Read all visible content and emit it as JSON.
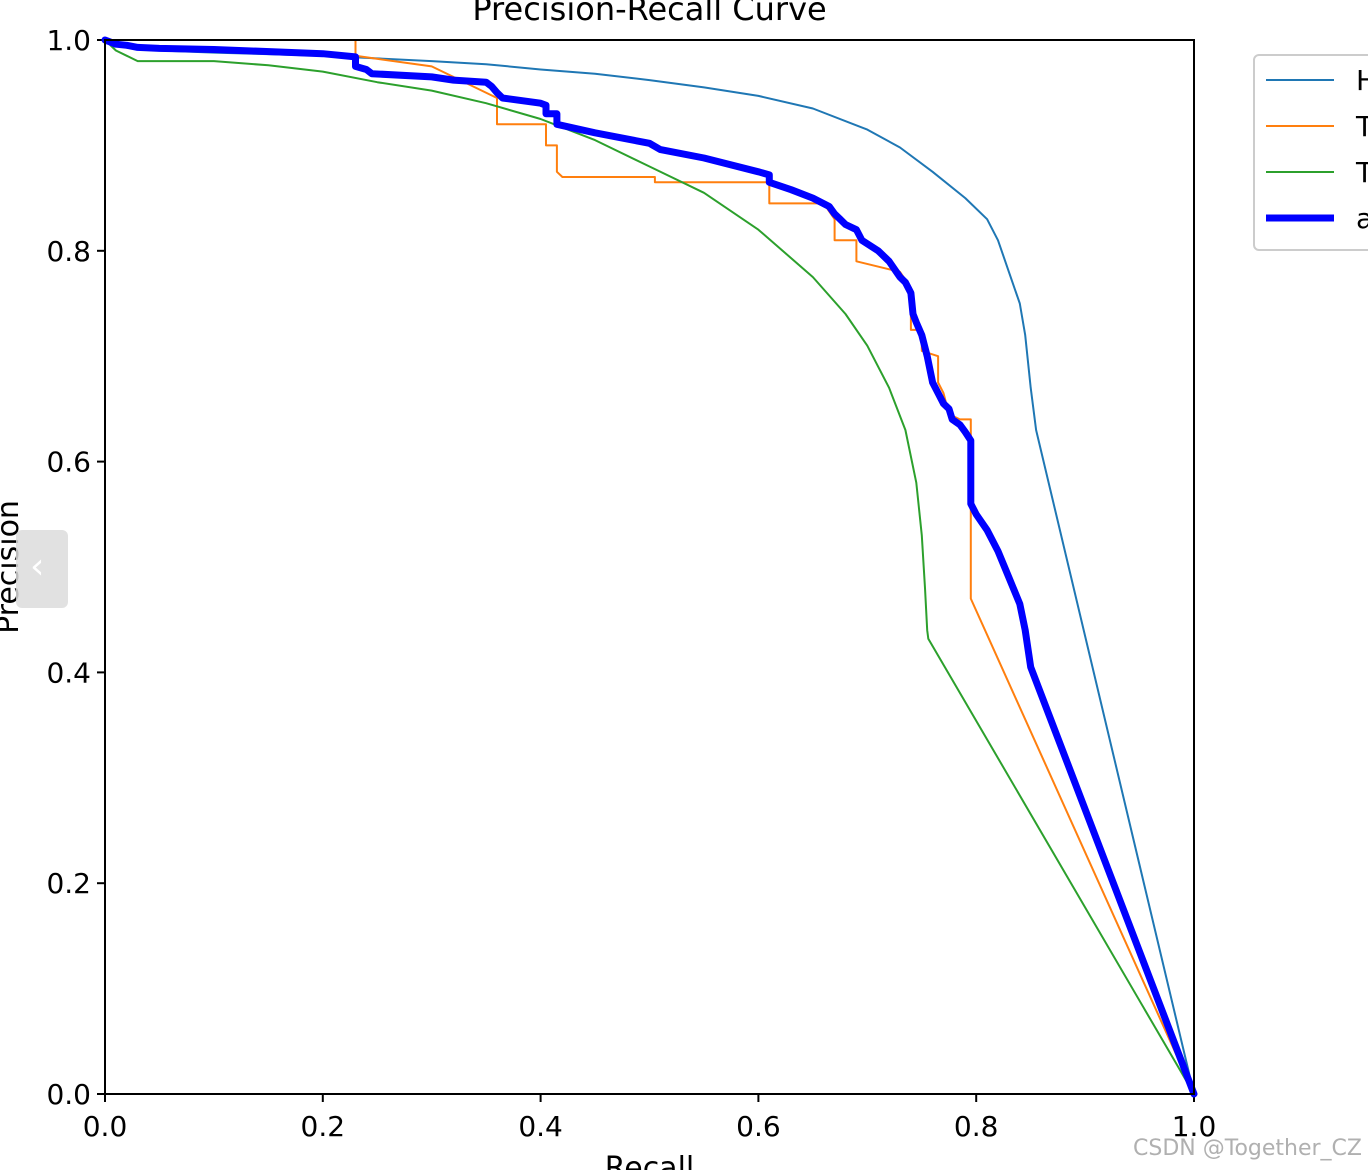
{
  "chart_data": {
    "type": "line",
    "title": "Precision-Recall Curve",
    "xlabel": "Recall",
    "ylabel": "Precision",
    "xlim": [
      0.0,
      1.0
    ],
    "ylim": [
      0.0,
      1.0
    ],
    "xticks": [
      "0.0",
      "0.2",
      "0.4",
      "0.6",
      "0.8",
      "1.0"
    ],
    "yticks": [
      "0.0",
      "0.2",
      "0.4",
      "0.6",
      "0.8",
      "1.0"
    ],
    "grid": false,
    "legend_position": "outside top-right",
    "series": [
      {
        "name": "H",
        "color": "#1f77b4",
        "width": 2,
        "points": [
          [
            0.0,
            1.0
          ],
          [
            0.05,
            0.99
          ],
          [
            0.1,
            0.988
          ],
          [
            0.2,
            0.985
          ],
          [
            0.3,
            0.98
          ],
          [
            0.35,
            0.977
          ],
          [
            0.4,
            0.972
          ],
          [
            0.45,
            0.968
          ],
          [
            0.5,
            0.962
          ],
          [
            0.55,
            0.955
          ],
          [
            0.6,
            0.947
          ],
          [
            0.65,
            0.935
          ],
          [
            0.7,
            0.915
          ],
          [
            0.73,
            0.898
          ],
          [
            0.76,
            0.875
          ],
          [
            0.79,
            0.85
          ],
          [
            0.81,
            0.83
          ],
          [
            0.82,
            0.81
          ],
          [
            0.83,
            0.78
          ],
          [
            0.84,
            0.75
          ],
          [
            0.845,
            0.72
          ],
          [
            0.85,
            0.67
          ],
          [
            0.855,
            0.63
          ],
          [
            1.0,
            0.0
          ]
        ]
      },
      {
        "name": "T",
        "color": "#ff7f0e",
        "width": 2,
        "points": [
          [
            0.0,
            1.0
          ],
          [
            0.23,
            1.0
          ],
          [
            0.23,
            0.985
          ],
          [
            0.3,
            0.975
          ],
          [
            0.36,
            0.945
          ],
          [
            0.36,
            0.92
          ],
          [
            0.405,
            0.92
          ],
          [
            0.405,
            0.9
          ],
          [
            0.415,
            0.9
          ],
          [
            0.415,
            0.875
          ],
          [
            0.42,
            0.87
          ],
          [
            0.505,
            0.87
          ],
          [
            0.505,
            0.865
          ],
          [
            0.61,
            0.865
          ],
          [
            0.61,
            0.845
          ],
          [
            0.62,
            0.845
          ],
          [
            0.66,
            0.845
          ],
          [
            0.67,
            0.83
          ],
          [
            0.67,
            0.81
          ],
          [
            0.69,
            0.81
          ],
          [
            0.69,
            0.79
          ],
          [
            0.73,
            0.78
          ],
          [
            0.74,
            0.765
          ],
          [
            0.74,
            0.725
          ],
          [
            0.75,
            0.725
          ],
          [
            0.75,
            0.705
          ],
          [
            0.765,
            0.7
          ],
          [
            0.765,
            0.675
          ],
          [
            0.77,
            0.665
          ],
          [
            0.775,
            0.645
          ],
          [
            0.785,
            0.64
          ],
          [
            0.795,
            0.64
          ],
          [
            0.795,
            0.47
          ],
          [
            1.0,
            0.0
          ]
        ]
      },
      {
        "name": "T",
        "color": "#2ca02c",
        "width": 2,
        "points": [
          [
            0.0,
            1.0
          ],
          [
            0.01,
            0.99
          ],
          [
            0.02,
            0.985
          ],
          [
            0.03,
            0.98
          ],
          [
            0.05,
            0.98
          ],
          [
            0.1,
            0.98
          ],
          [
            0.15,
            0.976
          ],
          [
            0.2,
            0.97
          ],
          [
            0.25,
            0.96
          ],
          [
            0.3,
            0.952
          ],
          [
            0.35,
            0.94
          ],
          [
            0.4,
            0.925
          ],
          [
            0.45,
            0.905
          ],
          [
            0.5,
            0.88
          ],
          [
            0.55,
            0.855
          ],
          [
            0.6,
            0.82
          ],
          [
            0.65,
            0.775
          ],
          [
            0.68,
            0.74
          ],
          [
            0.7,
            0.71
          ],
          [
            0.72,
            0.67
          ],
          [
            0.735,
            0.63
          ],
          [
            0.745,
            0.58
          ],
          [
            0.75,
            0.53
          ],
          [
            0.753,
            0.48
          ],
          [
            0.755,
            0.44
          ],
          [
            0.756,
            0.432
          ],
          [
            1.0,
            0.0
          ]
        ]
      },
      {
        "name": "a",
        "color": "#0000ff",
        "width": 7,
        "points": [
          [
            0.0,
            1.0
          ],
          [
            0.01,
            0.996
          ],
          [
            0.02,
            0.995
          ],
          [
            0.03,
            0.993
          ],
          [
            0.05,
            0.992
          ],
          [
            0.1,
            0.991
          ],
          [
            0.2,
            0.987
          ],
          [
            0.23,
            0.984
          ],
          [
            0.23,
            0.975
          ],
          [
            0.24,
            0.972
          ],
          [
            0.245,
            0.968
          ],
          [
            0.3,
            0.965
          ],
          [
            0.32,
            0.962
          ],
          [
            0.35,
            0.96
          ],
          [
            0.355,
            0.956
          ],
          [
            0.36,
            0.95
          ],
          [
            0.365,
            0.945
          ],
          [
            0.4,
            0.94
          ],
          [
            0.405,
            0.938
          ],
          [
            0.405,
            0.93
          ],
          [
            0.415,
            0.93
          ],
          [
            0.415,
            0.92
          ],
          [
            0.45,
            0.912
          ],
          [
            0.5,
            0.902
          ],
          [
            0.51,
            0.896
          ],
          [
            0.55,
            0.888
          ],
          [
            0.6,
            0.875
          ],
          [
            0.61,
            0.872
          ],
          [
            0.61,
            0.865
          ],
          [
            0.63,
            0.858
          ],
          [
            0.65,
            0.85
          ],
          [
            0.665,
            0.842
          ],
          [
            0.67,
            0.835
          ],
          [
            0.675,
            0.83
          ],
          [
            0.68,
            0.825
          ],
          [
            0.69,
            0.82
          ],
          [
            0.695,
            0.81
          ],
          [
            0.71,
            0.8
          ],
          [
            0.72,
            0.79
          ],
          [
            0.73,
            0.775
          ],
          [
            0.735,
            0.77
          ],
          [
            0.74,
            0.76
          ],
          [
            0.742,
            0.74
          ],
          [
            0.745,
            0.732
          ],
          [
            0.75,
            0.72
          ],
          [
            0.755,
            0.7
          ],
          [
            0.76,
            0.675
          ],
          [
            0.765,
            0.665
          ],
          [
            0.77,
            0.655
          ],
          [
            0.775,
            0.65
          ],
          [
            0.778,
            0.64
          ],
          [
            0.785,
            0.635
          ],
          [
            0.79,
            0.628
          ],
          [
            0.795,
            0.62
          ],
          [
            0.795,
            0.56
          ],
          [
            0.8,
            0.55
          ],
          [
            0.81,
            0.535
          ],
          [
            0.82,
            0.515
          ],
          [
            0.83,
            0.49
          ],
          [
            0.84,
            0.465
          ],
          [
            0.845,
            0.44
          ],
          [
            0.85,
            0.405
          ],
          [
            1.0,
            0.0
          ]
        ]
      }
    ]
  },
  "watermark": "CSDN @Together_CZ"
}
